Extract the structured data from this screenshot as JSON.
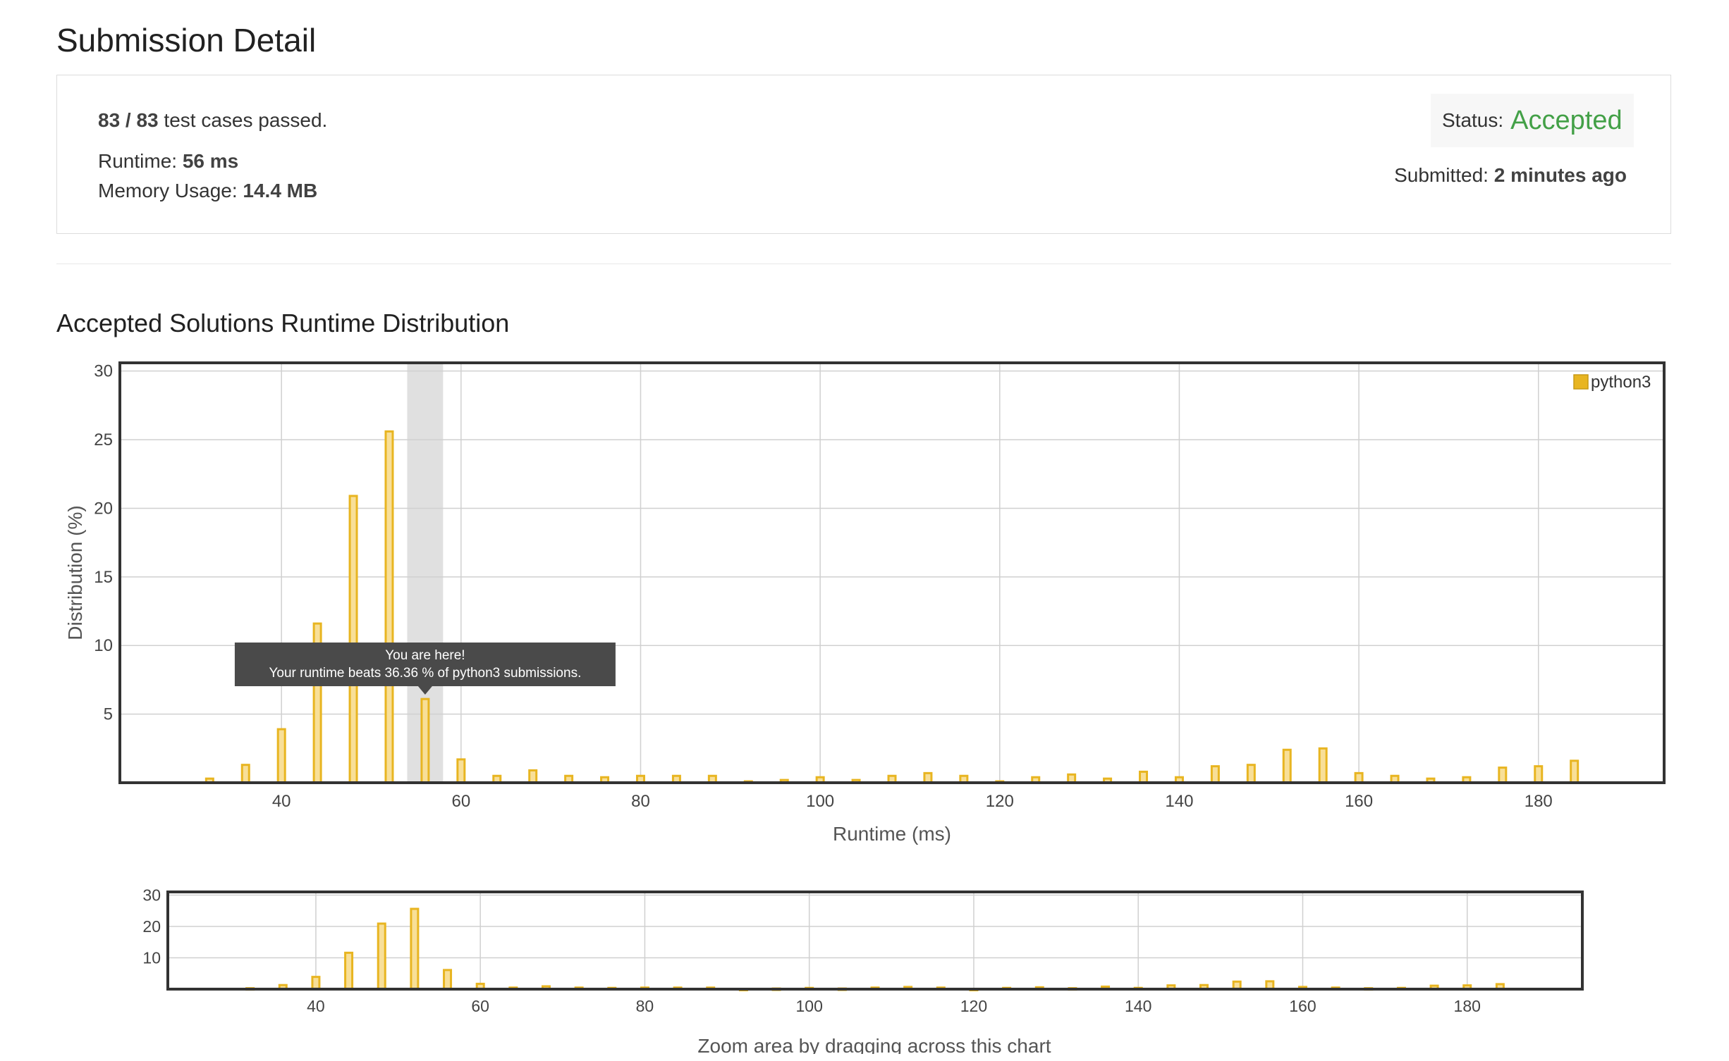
{
  "header": {
    "title": "Submission Detail"
  },
  "summary": {
    "tests_passed": "83 / 83",
    "tests_label": "test cases passed.",
    "runtime_label": "Runtime:",
    "runtime_value": "56 ms",
    "memory_label": "Memory Usage:",
    "memory_value": "14.4 MB",
    "status_label": "Status:",
    "status_value": "Accepted",
    "submitted_label": "Submitted:",
    "submitted_value": "2 minutes ago"
  },
  "colors": {
    "accepted": "#43a047",
    "bar_fill": "#f8df98",
    "bar_stroke": "#e8b521",
    "highlight": "#e0e0e0",
    "tooltip_bg": "#4a4a4a"
  },
  "section": {
    "title": "Accepted Solutions Runtime Distribution"
  },
  "tooltip": {
    "line1": "You are here!",
    "line2": "Your runtime beats 36.36 % of python3 submissions."
  },
  "zoom": {
    "caption": "Zoom area by dragging across this chart"
  },
  "chart_data": [
    {
      "type": "bar",
      "xlabel": "Runtime (ms)",
      "ylabel": "Distribution (%)",
      "xlim": [
        22,
        194
      ],
      "ylim": [
        0,
        30.6
      ],
      "x_ticks": [
        40,
        60,
        80,
        100,
        120,
        140,
        160,
        180
      ],
      "y_ticks": [
        5,
        10,
        15,
        20,
        25,
        30
      ],
      "grid": true,
      "legend": "top-right",
      "highlight_range": [
        54,
        58
      ],
      "series": [
        {
          "name": "python3",
          "x": [
            32,
            36,
            40,
            44,
            48,
            52,
            56,
            60,
            64,
            68,
            72,
            76,
            80,
            84,
            88,
            92,
            96,
            100,
            104,
            108,
            112,
            116,
            120,
            124,
            128,
            132,
            136,
            140,
            144,
            148,
            152,
            156,
            160,
            164,
            168,
            172,
            176,
            180,
            184
          ],
          "values": [
            0.3,
            1.3,
            3.9,
            11.6,
            20.9,
            25.6,
            6.1,
            1.7,
            0.5,
            0.9,
            0.5,
            0.4,
            0.5,
            0.5,
            0.5,
            0.1,
            0.2,
            0.4,
            0.2,
            0.5,
            0.7,
            0.5,
            0.1,
            0.4,
            0.6,
            0.3,
            0.8,
            0.4,
            1.2,
            1.3,
            2.4,
            2.5,
            0.7,
            0.5,
            0.3,
            0.4,
            1.1,
            1.2,
            1.6
          ]
        }
      ]
    },
    {
      "type": "bar",
      "xlim": [
        22,
        194
      ],
      "ylim": [
        0,
        31
      ],
      "x_ticks": [
        40,
        60,
        80,
        100,
        120,
        140,
        160,
        180
      ],
      "y_ticks": [
        10,
        20,
        30
      ],
      "grid": true
    }
  ]
}
